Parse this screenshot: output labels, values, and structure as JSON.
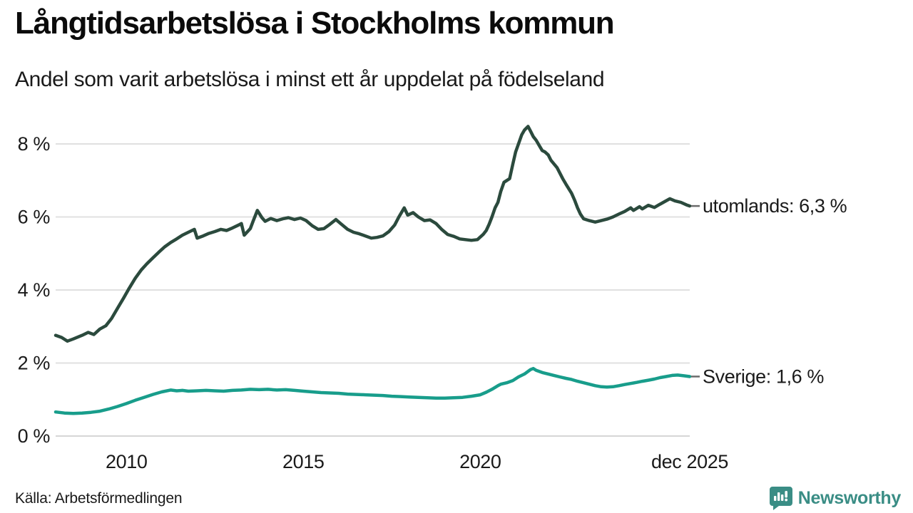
{
  "header": {
    "title": "Långtidsarbetslösa i Stockholms kommun",
    "subtitle": "Andel som varit arbetslösa i minst ett år uppdelat på födelseland"
  },
  "footer": {
    "source": "Källa: Arbetsförmedlingen",
    "brand": "Newsworthy"
  },
  "colors": {
    "utomlands_line": "#2b4a3d",
    "sverige_line": "#189d8b",
    "gridline": "#e0e0e0",
    "baseline": "#d6d6d6",
    "end_dash": "#6b6b6b",
    "text": "#1a1a1a",
    "brand_teal": "#3a8d85"
  },
  "chart_data": {
    "type": "line",
    "title": "Långtidsarbetslösa i Stockholms kommun",
    "subtitle": "Andel som varit arbetslösa i minst ett år uppdelat på födelseland",
    "source": "Källa: Arbetsförmedlingen",
    "unit": "%",
    "grid": "horizontal-only",
    "legend_position": "end-of-line-labels",
    "x_range": [
      2008.0,
      2025.92
    ],
    "ylim": [
      0,
      8.8
    ],
    "y_ticks": [
      {
        "value": 0,
        "label": "0 %"
      },
      {
        "value": 2,
        "label": "2 %"
      },
      {
        "value": 4,
        "label": "4 %"
      },
      {
        "value": 6,
        "label": "6 %"
      },
      {
        "value": 8,
        "label": "8 %"
      }
    ],
    "x_ticks": [
      {
        "value": 2010.0,
        "label": "2010"
      },
      {
        "value": 2015.0,
        "label": "2015"
      },
      {
        "value": 2020.0,
        "label": "2020"
      },
      {
        "value": 2025.92,
        "label": "dec 2025"
      }
    ],
    "series": [
      {
        "name": "utomlands",
        "end_label": "utomlands: 6,3 %",
        "last_value": 6.3,
        "color": "#2b4a3d",
        "points": [
          [
            2008.0,
            2.76
          ],
          [
            2008.17,
            2.7
          ],
          [
            2008.33,
            2.6
          ],
          [
            2008.5,
            2.66
          ],
          [
            2008.75,
            2.76
          ],
          [
            2008.92,
            2.84
          ],
          [
            2009.08,
            2.78
          ],
          [
            2009.25,
            2.93
          ],
          [
            2009.42,
            3.02
          ],
          [
            2009.58,
            3.22
          ],
          [
            2009.75,
            3.5
          ],
          [
            2009.92,
            3.78
          ],
          [
            2010.08,
            4.05
          ],
          [
            2010.25,
            4.32
          ],
          [
            2010.42,
            4.55
          ],
          [
            2010.58,
            4.72
          ],
          [
            2010.75,
            4.88
          ],
          [
            2010.92,
            5.04
          ],
          [
            2011.08,
            5.18
          ],
          [
            2011.25,
            5.3
          ],
          [
            2011.42,
            5.4
          ],
          [
            2011.58,
            5.5
          ],
          [
            2011.75,
            5.58
          ],
          [
            2011.92,
            5.66
          ],
          [
            2012.0,
            5.42
          ],
          [
            2012.17,
            5.48
          ],
          [
            2012.33,
            5.55
          ],
          [
            2012.5,
            5.6
          ],
          [
            2012.67,
            5.66
          ],
          [
            2012.83,
            5.63
          ],
          [
            2013.0,
            5.7
          ],
          [
            2013.17,
            5.78
          ],
          [
            2013.25,
            5.82
          ],
          [
            2013.33,
            5.5
          ],
          [
            2013.5,
            5.68
          ],
          [
            2013.58,
            5.88
          ],
          [
            2013.7,
            6.18
          ],
          [
            2013.83,
            5.98
          ],
          [
            2013.92,
            5.88
          ],
          [
            2014.08,
            5.96
          ],
          [
            2014.25,
            5.9
          ],
          [
            2014.42,
            5.95
          ],
          [
            2014.58,
            5.98
          ],
          [
            2014.75,
            5.93
          ],
          [
            2014.92,
            5.97
          ],
          [
            2015.08,
            5.9
          ],
          [
            2015.25,
            5.76
          ],
          [
            2015.42,
            5.66
          ],
          [
            2015.58,
            5.68
          ],
          [
            2015.75,
            5.8
          ],
          [
            2015.92,
            5.93
          ],
          [
            2016.08,
            5.8
          ],
          [
            2016.25,
            5.66
          ],
          [
            2016.42,
            5.58
          ],
          [
            2016.58,
            5.54
          ],
          [
            2016.75,
            5.48
          ],
          [
            2016.92,
            5.42
          ],
          [
            2017.08,
            5.44
          ],
          [
            2017.25,
            5.48
          ],
          [
            2017.42,
            5.6
          ],
          [
            2017.58,
            5.78
          ],
          [
            2017.7,
            6.0
          ],
          [
            2017.85,
            6.25
          ],
          [
            2017.95,
            6.05
          ],
          [
            2018.1,
            6.12
          ],
          [
            2018.25,
            6.0
          ],
          [
            2018.42,
            5.9
          ],
          [
            2018.58,
            5.92
          ],
          [
            2018.75,
            5.82
          ],
          [
            2018.92,
            5.65
          ],
          [
            2019.08,
            5.52
          ],
          [
            2019.25,
            5.47
          ],
          [
            2019.42,
            5.4
          ],
          [
            2019.58,
            5.38
          ],
          [
            2019.75,
            5.36
          ],
          [
            2019.92,
            5.38
          ],
          [
            2020.08,
            5.52
          ],
          [
            2020.17,
            5.63
          ],
          [
            2020.25,
            5.8
          ],
          [
            2020.33,
            6.0
          ],
          [
            2020.42,
            6.25
          ],
          [
            2020.5,
            6.4
          ],
          [
            2020.58,
            6.7
          ],
          [
            2020.67,
            6.95
          ],
          [
            2020.75,
            7.0
          ],
          [
            2020.83,
            7.05
          ],
          [
            2020.92,
            7.45
          ],
          [
            2021.0,
            7.78
          ],
          [
            2021.08,
            8.0
          ],
          [
            2021.17,
            8.25
          ],
          [
            2021.25,
            8.38
          ],
          [
            2021.35,
            8.48
          ],
          [
            2021.42,
            8.35
          ],
          [
            2021.5,
            8.2
          ],
          [
            2021.58,
            8.1
          ],
          [
            2021.67,
            7.95
          ],
          [
            2021.75,
            7.82
          ],
          [
            2021.83,
            7.78
          ],
          [
            2021.92,
            7.7
          ],
          [
            2022.0,
            7.55
          ],
          [
            2022.17,
            7.35
          ],
          [
            2022.33,
            7.05
          ],
          [
            2022.42,
            6.9
          ],
          [
            2022.58,
            6.65
          ],
          [
            2022.67,
            6.45
          ],
          [
            2022.75,
            6.25
          ],
          [
            2022.83,
            6.08
          ],
          [
            2022.92,
            5.95
          ],
          [
            2023.08,
            5.9
          ],
          [
            2023.25,
            5.86
          ],
          [
            2023.42,
            5.9
          ],
          [
            2023.58,
            5.94
          ],
          [
            2023.75,
            6.0
          ],
          [
            2023.92,
            6.08
          ],
          [
            2024.08,
            6.15
          ],
          [
            2024.25,
            6.25
          ],
          [
            2024.33,
            6.18
          ],
          [
            2024.5,
            6.28
          ],
          [
            2024.58,
            6.22
          ],
          [
            2024.75,
            6.32
          ],
          [
            2024.92,
            6.26
          ],
          [
            2025.08,
            6.35
          ],
          [
            2025.25,
            6.44
          ],
          [
            2025.36,
            6.5
          ],
          [
            2025.5,
            6.44
          ],
          [
            2025.67,
            6.4
          ],
          [
            2025.83,
            6.33
          ],
          [
            2025.92,
            6.3
          ]
        ]
      },
      {
        "name": "Sverige",
        "end_label": "Sverige: 1,6 %",
        "last_value": 1.6,
        "color": "#189d8b",
        "points": [
          [
            2008.0,
            0.66
          ],
          [
            2008.25,
            0.63
          ],
          [
            2008.5,
            0.62
          ],
          [
            2008.75,
            0.63
          ],
          [
            2009.0,
            0.65
          ],
          [
            2009.25,
            0.68
          ],
          [
            2009.5,
            0.74
          ],
          [
            2009.75,
            0.81
          ],
          [
            2010.0,
            0.89
          ],
          [
            2010.25,
            0.98
          ],
          [
            2010.5,
            1.06
          ],
          [
            2010.75,
            1.14
          ],
          [
            2011.0,
            1.21
          ],
          [
            2011.25,
            1.26
          ],
          [
            2011.42,
            1.24
          ],
          [
            2011.58,
            1.25
          ],
          [
            2011.75,
            1.23
          ],
          [
            2012.0,
            1.24
          ],
          [
            2012.25,
            1.25
          ],
          [
            2012.5,
            1.24
          ],
          [
            2012.75,
            1.23
          ],
          [
            2013.0,
            1.25
          ],
          [
            2013.25,
            1.26
          ],
          [
            2013.5,
            1.28
          ],
          [
            2013.75,
            1.27
          ],
          [
            2014.0,
            1.28
          ],
          [
            2014.25,
            1.26
          ],
          [
            2014.5,
            1.27
          ],
          [
            2014.75,
            1.25
          ],
          [
            2015.0,
            1.23
          ],
          [
            2015.25,
            1.21
          ],
          [
            2015.5,
            1.19
          ],
          [
            2015.75,
            1.18
          ],
          [
            2016.0,
            1.17
          ],
          [
            2016.25,
            1.15
          ],
          [
            2016.5,
            1.14
          ],
          [
            2016.75,
            1.13
          ],
          [
            2017.0,
            1.12
          ],
          [
            2017.25,
            1.11
          ],
          [
            2017.5,
            1.09
          ],
          [
            2017.75,
            1.08
          ],
          [
            2018.0,
            1.07
          ],
          [
            2018.25,
            1.06
          ],
          [
            2018.5,
            1.05
          ],
          [
            2018.75,
            1.04
          ],
          [
            2019.0,
            1.04
          ],
          [
            2019.25,
            1.05
          ],
          [
            2019.5,
            1.06
          ],
          [
            2019.75,
            1.09
          ],
          [
            2020.0,
            1.13
          ],
          [
            2020.17,
            1.2
          ],
          [
            2020.33,
            1.28
          ],
          [
            2020.5,
            1.38
          ],
          [
            2020.58,
            1.42
          ],
          [
            2020.75,
            1.46
          ],
          [
            2020.92,
            1.52
          ],
          [
            2021.08,
            1.62
          ],
          [
            2021.25,
            1.7
          ],
          [
            2021.42,
            1.82
          ],
          [
            2021.5,
            1.85
          ],
          [
            2021.58,
            1.8
          ],
          [
            2021.75,
            1.74
          ],
          [
            2021.92,
            1.7
          ],
          [
            2022.08,
            1.66
          ],
          [
            2022.25,
            1.62
          ],
          [
            2022.42,
            1.58
          ],
          [
            2022.58,
            1.55
          ],
          [
            2022.75,
            1.5
          ],
          [
            2022.92,
            1.46
          ],
          [
            2023.08,
            1.42
          ],
          [
            2023.25,
            1.38
          ],
          [
            2023.42,
            1.35
          ],
          [
            2023.58,
            1.34
          ],
          [
            2023.75,
            1.35
          ],
          [
            2023.92,
            1.38
          ],
          [
            2024.08,
            1.41
          ],
          [
            2024.25,
            1.44
          ],
          [
            2024.42,
            1.47
          ],
          [
            2024.58,
            1.5
          ],
          [
            2024.75,
            1.53
          ],
          [
            2024.92,
            1.56
          ],
          [
            2025.08,
            1.6
          ],
          [
            2025.25,
            1.63
          ],
          [
            2025.42,
            1.66
          ],
          [
            2025.58,
            1.67
          ],
          [
            2025.75,
            1.65
          ],
          [
            2025.92,
            1.63
          ]
        ]
      }
    ]
  }
}
